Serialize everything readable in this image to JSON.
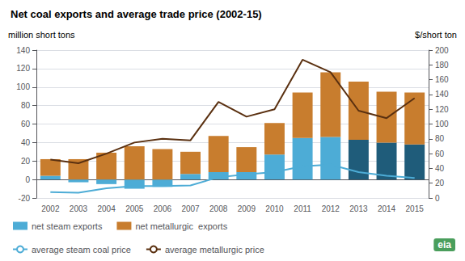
{
  "chart_data": {
    "type": "bar",
    "title": "Net coal exports and average trade price (2002-15)",
    "ylabel": "million short tons",
    "y2label": "$/short ton",
    "categories": [
      "2002",
      "2003",
      "2004",
      "2005",
      "2006",
      "2007",
      "2008",
      "2009",
      "2010",
      "2011",
      "2012",
      "2013",
      "2014",
      "2015"
    ],
    "stacked": true,
    "series": [
      {
        "name": "net steam exports",
        "type": "bar",
        "color": "#4dacd6",
        "colors": [
          "#4dacd6",
          "#4dacd6",
          "#4dacd6",
          "#4dacd6",
          "#4dacd6",
          "#4dacd6",
          "#4dacd6",
          "#4dacd6",
          "#4dacd6",
          "#4dacd6",
          "#4dacd6",
          "#1f5c7a",
          "#1f5c7a",
          "#1f5c7a"
        ],
        "values": [
          4,
          -3,
          -5,
          -10,
          -8,
          6,
          8,
          8,
          27,
          45,
          46,
          43,
          40,
          38
        ]
      },
      {
        "name": "net metallurgic  exports",
        "type": "bar",
        "color": "#c87d2e",
        "values": [
          18,
          22,
          29,
          36,
          33,
          24,
          39,
          27,
          34,
          49,
          70,
          63,
          55,
          56
        ]
      },
      {
        "name": "average steam coal price",
        "type": "line",
        "axis": "y2",
        "color": "#4dacd6",
        "values": [
          8,
          7,
          13,
          16,
          16,
          17,
          28,
          32,
          35,
          43,
          45,
          35,
          30,
          27
        ]
      },
      {
        "name": "average metallurgic price",
        "type": "line",
        "axis": "y2",
        "color": "#5a3010",
        "values": [
          52,
          47,
          60,
          75,
          80,
          78,
          130,
          110,
          120,
          187,
          170,
          118,
          108,
          135
        ]
      }
    ],
    "ylim": [
      -20,
      140
    ],
    "yticks": [
      -20,
      0,
      20,
      40,
      60,
      80,
      100,
      120,
      140
    ],
    "y2lim": [
      0,
      200
    ],
    "y2ticks": [
      0,
      20,
      40,
      60,
      80,
      100,
      120,
      140,
      160,
      180,
      200
    ],
    "grid": true,
    "legend": "bottom",
    "annotations": [
      {
        "text": "eia",
        "color": "#4a9e5c"
      }
    ]
  }
}
